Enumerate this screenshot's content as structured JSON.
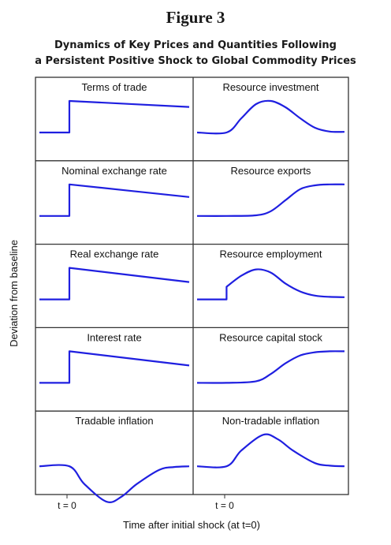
{
  "figure_label": "Figure 3",
  "title_line1": "Dynamics of Key Prices and Quantities Following",
  "title_line2": "a Persistent Positive Shock to Global Commodity Prices",
  "ylabel": "Deviation from baseline",
  "xlabel": "Time after initial shock (at t=0)",
  "x_tick_left": "t = 0",
  "x_tick_right": "t = 0",
  "line_color": "#1f1fe0",
  "chart_data": [
    {
      "type": "line",
      "title": "Terms of trade",
      "x": [
        0,
        0.2,
        0.2,
        1
      ],
      "y": [
        0,
        0,
        1,
        0.81
      ]
    },
    {
      "type": "line",
      "title": "Resource investment",
      "x": [
        0,
        0.2,
        0.3,
        0.4,
        0.5,
        0.6,
        0.7,
        0.8,
        0.9,
        1
      ],
      "y": [
        0,
        0,
        0.45,
        0.9,
        1,
        0.8,
        0.45,
        0.15,
        0.03,
        0.02
      ]
    },
    {
      "type": "line",
      "title": "Nominal exchange rate",
      "x": [
        0,
        0.2,
        0.2,
        1
      ],
      "y": [
        0,
        0,
        1,
        0.6
      ]
    },
    {
      "type": "line",
      "title": "Resource exports",
      "x": [
        0,
        0.2,
        0.4,
        0.5,
        0.6,
        0.7,
        0.8,
        0.9,
        1
      ],
      "y": [
        0,
        0,
        0.02,
        0.15,
        0.5,
        0.85,
        0.97,
        1,
        1
      ]
    },
    {
      "type": "line",
      "title": "Real exchange rate",
      "x": [
        0,
        0.2,
        0.2,
        1
      ],
      "y": [
        0,
        0,
        1,
        0.55
      ]
    },
    {
      "type": "line",
      "title": "Resource employment",
      "x": [
        0,
        0.2,
        0.2,
        0.3,
        0.4,
        0.5,
        0.6,
        0.7,
        0.8,
        0.9,
        1
      ],
      "y": [
        0,
        0,
        0.4,
        0.75,
        0.95,
        0.85,
        0.5,
        0.25,
        0.12,
        0.08,
        0.07
      ]
    },
    {
      "type": "line",
      "title": "Interest rate",
      "x": [
        0,
        0.2,
        0.2,
        1
      ],
      "y": [
        0,
        0,
        1,
        0.55
      ]
    },
    {
      "type": "line",
      "title": "Resource capital stock",
      "x": [
        0,
        0.2,
        0.4,
        0.5,
        0.6,
        0.7,
        0.8,
        0.9,
        1
      ],
      "y": [
        0,
        0,
        0.05,
        0.28,
        0.62,
        0.87,
        0.97,
        1,
        1
      ]
    },
    {
      "type": "line",
      "title": "Tradable inflation",
      "x": [
        0,
        0.2,
        0.3,
        0.45,
        0.55,
        0.65,
        0.8,
        0.9,
        1
      ],
      "y": [
        0,
        0,
        -0.5,
        -1,
        -0.85,
        -0.5,
        -0.1,
        -0.02,
        0
      ]
    },
    {
      "type": "line",
      "title": "Non-tradable inflation",
      "x": [
        0,
        0.2,
        0.3,
        0.45,
        0.55,
        0.65,
        0.8,
        0.9,
        1
      ],
      "y": [
        0,
        0,
        0.5,
        1,
        0.85,
        0.5,
        0.1,
        0.02,
        0
      ]
    }
  ]
}
